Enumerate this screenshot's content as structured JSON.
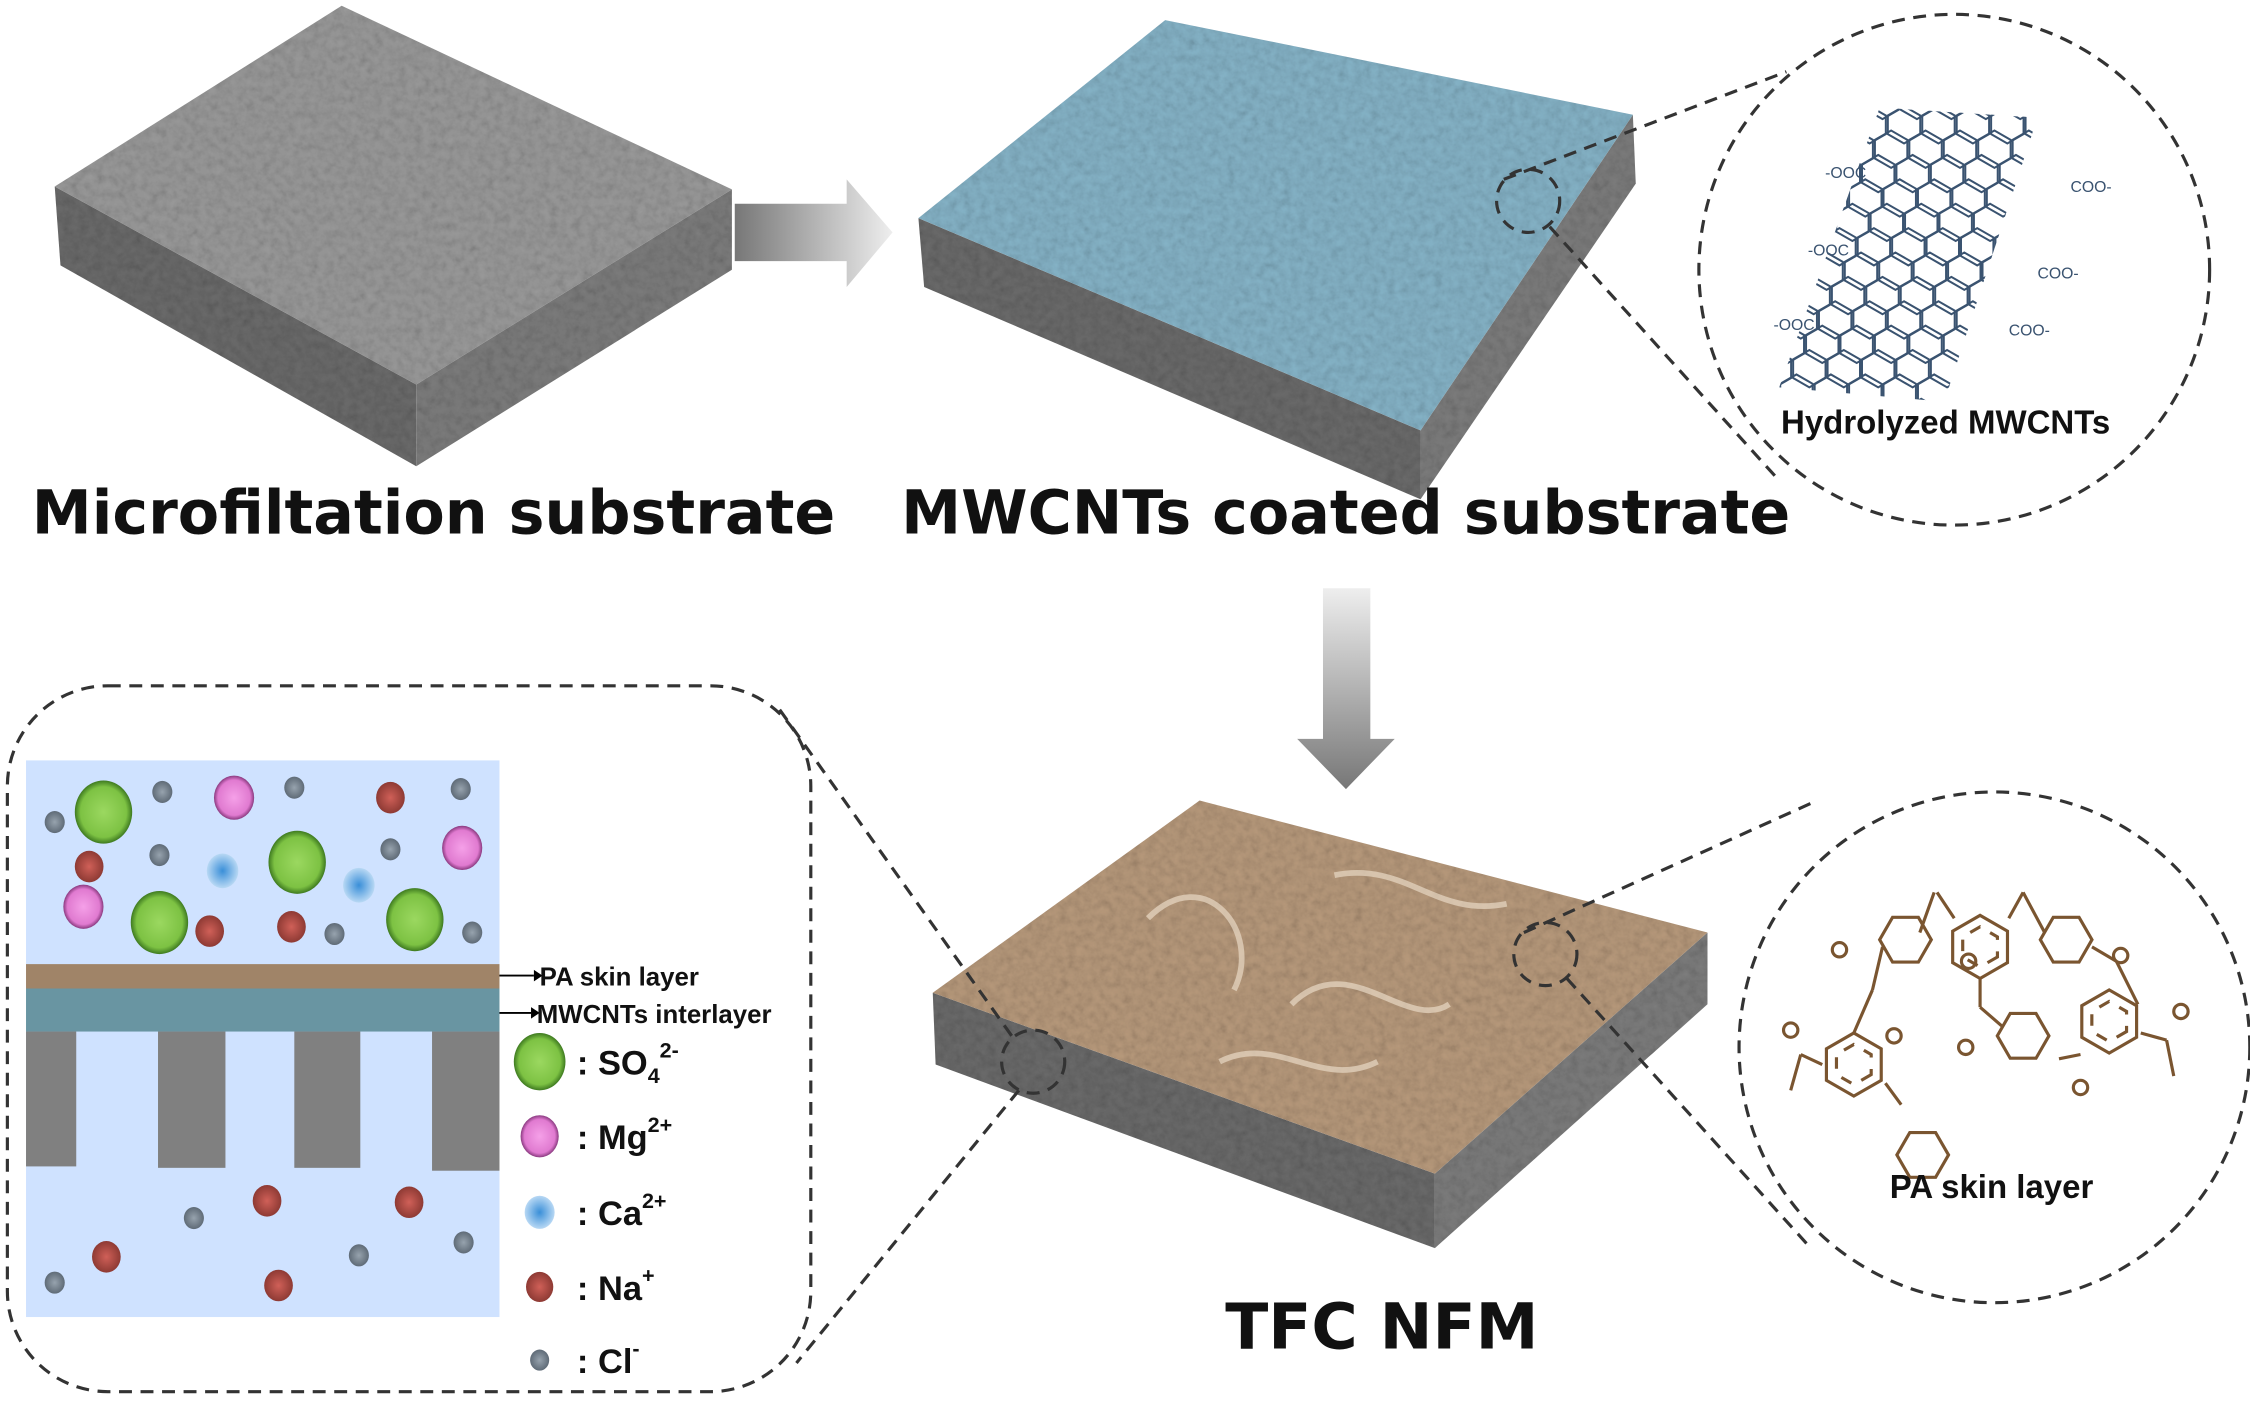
{
  "labels": {
    "microfiltration": "Microfiltation substrate",
    "coated": "MWCNTs coated substrate",
    "hydrolyzed": "Hydrolyzed MWCNTs",
    "tfc": "TFC NFM",
    "pa_skin": "PA skin layer",
    "pa_layer_arrow": "PA skin layer",
    "mwcnt_interlayer": "MWCNTs interlayer"
  },
  "cnt_groups": [
    "-OOC",
    "COO-",
    "-OOC",
    "COO-",
    "-OOC",
    "COO-"
  ],
  "legend": [
    {
      "label": ": SO",
      "sub": "4",
      "sup": "2-",
      "color": "#7dc243"
    },
    {
      "label": ": Mg",
      "sub": "",
      "sup": "2+",
      "color": "#e07ad0"
    },
    {
      "label": ": Ca",
      "sub": "",
      "sup": "2+",
      "color": "#4a9ee0"
    },
    {
      "label": ": Na",
      "sub": "",
      "sup": "+",
      "color": "#c0524a"
    },
    {
      "label": ": Cl",
      "sub": "",
      "sup": "-",
      "color": "#7f8c99"
    }
  ],
  "colors": {
    "substrate": "#8a8a8a",
    "mwcnt_coat": "#7fa9bd",
    "pa_coat": "#b89878",
    "feed_water": "#cfe2ff",
    "pa_band": "#a08468",
    "mwcnt_band": "#6995a2",
    "support": "#808080",
    "molecule": "#7a5530"
  }
}
